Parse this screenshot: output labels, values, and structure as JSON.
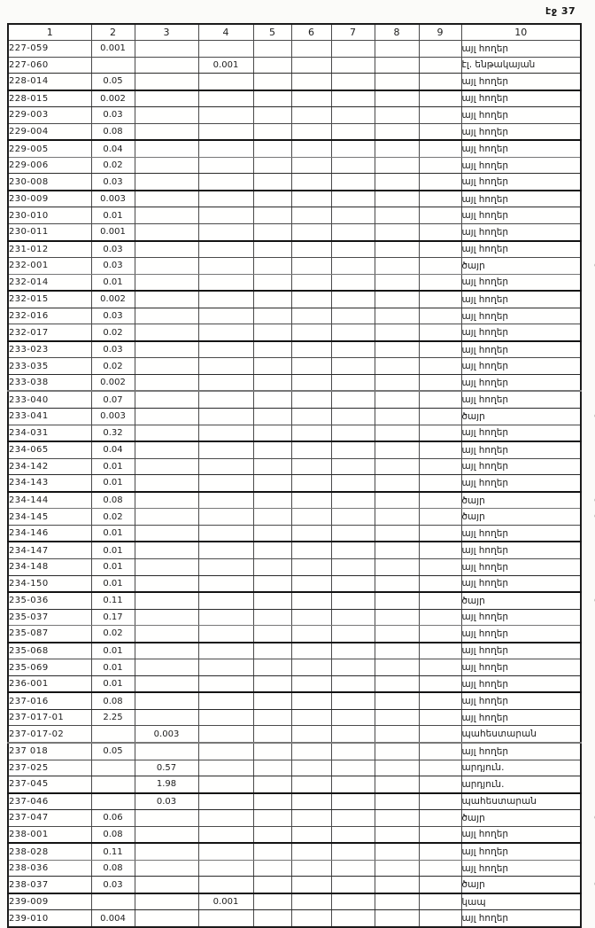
{
  "page": {
    "label": "էջ 37"
  },
  "colors": {
    "ink": "#1c1c1c",
    "paper": "#fbfbf9",
    "border": "#4c4c4c"
  },
  "table": {
    "headers": [
      "1",
      "2",
      "3",
      "4",
      "5",
      "6",
      "7",
      "8",
      "9",
      "10"
    ],
    "rows": [
      {
        "cells": [
          "227-059",
          "0.001",
          "",
          "",
          "",
          "",
          "",
          "",
          "",
          "այլ հողեր"
        ],
        "note": ""
      },
      {
        "cells": [
          "227-060",
          "",
          "",
          "0.001",
          "",
          "",
          "",
          "",
          "",
          "էլ. ենթակայան"
        ],
        "note": ""
      },
      {
        "cells": [
          "228-014",
          "0.05",
          "",
          "",
          "",
          "",
          "",
          "",
          "",
          "այլ հողեր"
        ],
        "note": ""
      },
      {
        "cells": [
          "228-015",
          "0.002",
          "",
          "",
          "",
          "",
          "",
          "",
          "",
          "այլ հողեր"
        ],
        "note": ""
      },
      {
        "cells": [
          "229-003",
          "0.03",
          "",
          "",
          "",
          "",
          "",
          "",
          "",
          "այլ հողեր"
        ],
        "note": ""
      },
      {
        "cells": [
          "229-004",
          "0.08",
          "",
          "",
          "",
          "",
          "",
          "",
          "",
          "այլ հողեր"
        ],
        "note": ""
      },
      {
        "cells": [
          "229-005",
          "0.04",
          "",
          "",
          "",
          "",
          "",
          "",
          "",
          "այլ հողեր"
        ],
        "note": ""
      },
      {
        "cells": [
          "229-006",
          "0.02",
          "",
          "",
          "",
          "",
          "",
          "",
          "",
          "այլ հողեր"
        ],
        "note": ""
      },
      {
        "cells": [
          "230-008",
          "0.03",
          "",
          "",
          "",
          "",
          "",
          "",
          "",
          "այլ հողեր"
        ],
        "note": ""
      },
      {
        "cells": [
          "230-009",
          "0.003",
          "",
          "",
          "",
          "",
          "",
          "",
          "",
          "այլ հողեր"
        ],
        "note": ""
      },
      {
        "cells": [
          "230-010",
          "0.01",
          "",
          "",
          "",
          "",
          "",
          "",
          "",
          "այլ հողեր"
        ],
        "note": ""
      },
      {
        "cells": [
          "230-011",
          "0.001",
          "",
          "",
          "",
          "",
          "",
          "",
          "",
          "այլ հողեր"
        ],
        "note": ""
      },
      {
        "cells": [
          "231-012",
          "0.03",
          "",
          "",
          "",
          "",
          "",
          "",
          "",
          "այլ հողեր"
        ],
        "note": ""
      },
      {
        "cells": [
          "232-001",
          "0.03",
          "",
          "",
          "",
          "",
          "",
          "",
          "",
          "ծայր"
        ],
        "note": "ժ"
      },
      {
        "cells": [
          "232-014",
          "0.01",
          "",
          "",
          "",
          "",
          "",
          "",
          "",
          "այլ հողեր"
        ],
        "note": ""
      },
      {
        "cells": [
          "232-015",
          "0.002",
          "",
          "",
          "",
          "",
          "",
          "",
          "",
          "այլ հողեր"
        ],
        "note": ""
      },
      {
        "cells": [
          "232-016",
          "0.03",
          "",
          "",
          "",
          "",
          "",
          "",
          "",
          "այլ հողեր"
        ],
        "note": ""
      },
      {
        "cells": [
          "232-017",
          "0.02",
          "",
          "",
          "",
          "",
          "",
          "",
          "",
          "այլ հողեր"
        ],
        "note": ""
      },
      {
        "cells": [
          "233-023",
          "0.03",
          "",
          "",
          "",
          "",
          "",
          "",
          "",
          "այլ հողեր"
        ],
        "note": ""
      },
      {
        "cells": [
          "233-035",
          "0.02",
          "",
          "",
          "",
          "",
          "",
          "",
          "",
          "այլ հողեր"
        ],
        "note": ""
      },
      {
        "cells": [
          "233-038",
          "0.002",
          "",
          "",
          "",
          "",
          "",
          "",
          "",
          "այլ հողեր"
        ],
        "note": ""
      },
      {
        "cells": [
          "233-040",
          "0.07",
          "",
          "",
          "",
          "",
          "",
          "",
          "",
          "այլ հողեր"
        ],
        "note": ""
      },
      {
        "cells": [
          "233-041",
          "0.003",
          "",
          "",
          "",
          "",
          "",
          "",
          "",
          "ծայր"
        ],
        "note": "ժ"
      },
      {
        "cells": [
          "234-031",
          "0.32",
          "",
          "",
          "",
          "",
          "",
          "",
          "",
          "այլ հողեր"
        ],
        "note": ""
      },
      {
        "cells": [
          "234-065",
          "0.04",
          "",
          "",
          "",
          "",
          "",
          "",
          "",
          "այլ հողեր"
        ],
        "note": ""
      },
      {
        "cells": [
          "234-142",
          "0.01",
          "",
          "",
          "",
          "",
          "",
          "",
          "",
          "այլ հողեր"
        ],
        "note": ""
      },
      {
        "cells": [
          "234-143",
          "0.01",
          "",
          "",
          "",
          "",
          "",
          "",
          "",
          "այլ հողեր"
        ],
        "note": ""
      },
      {
        "cells": [
          "234-144",
          "0.08",
          "",
          "",
          "",
          "",
          "",
          "",
          "",
          "ծայր"
        ],
        "note": "ժ"
      },
      {
        "cells": [
          "234-145",
          "0.02",
          "",
          "",
          "",
          "",
          "",
          "",
          "",
          "ծայր"
        ],
        "note": "ժ"
      },
      {
        "cells": [
          "234-146",
          "0.01",
          "",
          "",
          "",
          "",
          "",
          "",
          "",
          "այլ հողեր"
        ],
        "note": ""
      },
      {
        "cells": [
          "234-147",
          "0.01",
          "",
          "",
          "",
          "",
          "",
          "",
          "",
          "այլ հողեր"
        ],
        "note": ""
      },
      {
        "cells": [
          "234-148",
          "0.01",
          "",
          "",
          "",
          "",
          "",
          "",
          "",
          "այլ հողեր"
        ],
        "note": ""
      },
      {
        "cells": [
          "234-150",
          "0.01",
          "",
          "",
          "",
          "",
          "",
          "",
          "",
          "այլ հողեր"
        ],
        "note": ""
      },
      {
        "cells": [
          "235-036",
          "0.11",
          "",
          "",
          "",
          "",
          "",
          "",
          "",
          "ծայր"
        ],
        "note": "ժ"
      },
      {
        "cells": [
          "235-037",
          "0.17",
          "",
          "",
          "",
          "",
          "",
          "",
          "",
          "այլ հողեր"
        ],
        "note": ""
      },
      {
        "cells": [
          "235-087",
          "0.02",
          "",
          "",
          "",
          "",
          "",
          "",
          "",
          "այլ հողեր"
        ],
        "note": ""
      },
      {
        "cells": [
          "235-068",
          "0.01",
          "",
          "",
          "",
          "",
          "",
          "",
          "",
          "այլ հողեր"
        ],
        "note": ""
      },
      {
        "cells": [
          "235-069",
          "0.01",
          "",
          "",
          "",
          "",
          "",
          "",
          "",
          "այլ հողեր"
        ],
        "note": ""
      },
      {
        "cells": [
          "236-001",
          "0.01",
          "",
          "",
          "",
          "",
          "",
          "",
          "",
          "այլ հողեր"
        ],
        "note": ""
      },
      {
        "cells": [
          "237-016",
          "0.08",
          "",
          "",
          "",
          "",
          "",
          "",
          "",
          "այլ հողեր"
        ],
        "note": ""
      },
      {
        "cells": [
          "237-017-01",
          "2.25",
          "",
          "",
          "",
          "",
          "",
          "",
          "",
          "այլ հողեր"
        ],
        "note": ""
      },
      {
        "cells": [
          "237-017-02",
          "",
          "0.003",
          "",
          "",
          "",
          "",
          "",
          "",
          "պահեստարան"
        ],
        "note": ""
      },
      {
        "cells": [
          "237 018",
          "0.05",
          "",
          "",
          "",
          "",
          "",
          "",
          "",
          "այլ հողեր"
        ],
        "note": ""
      },
      {
        "cells": [
          "237-025",
          "",
          "0.57",
          "",
          "",
          "",
          "",
          "",
          "",
          "արդյուն."
        ],
        "note": ""
      },
      {
        "cells": [
          "237-045",
          "",
          "1.98",
          "",
          "",
          "",
          "",
          "",
          "",
          "արդյուն."
        ],
        "note": ""
      },
      {
        "cells": [
          "237-046",
          "",
          "0.03",
          "",
          "",
          "",
          "",
          "",
          "",
          "պահեստարան"
        ],
        "note": ""
      },
      {
        "cells": [
          "237-047",
          "0.06",
          "",
          "",
          "",
          "",
          "",
          "",
          "",
          "ծայր"
        ],
        "note": "ժ"
      },
      {
        "cells": [
          "238-001",
          "0.08",
          "",
          "",
          "",
          "",
          "",
          "",
          "",
          "այլ հողեր"
        ],
        "note": ""
      },
      {
        "cells": [
          "238-028",
          "0.11",
          "",
          "",
          "",
          "",
          "",
          "",
          "",
          "այլ հողեր"
        ],
        "note": ""
      },
      {
        "cells": [
          "238-036",
          "0.08",
          "",
          "",
          "",
          "",
          "",
          "",
          "",
          "այլ հողեր"
        ],
        "note": ""
      },
      {
        "cells": [
          "238-037",
          "0.03",
          "",
          "",
          "",
          "",
          "",
          "",
          "",
          "ծայր"
        ],
        "note": "ժ"
      },
      {
        "cells": [
          "239-009",
          "",
          "",
          "0.001",
          "",
          "",
          "",
          "",
          "",
          "կապ"
        ],
        "note": ""
      },
      {
        "cells": [
          "239-010",
          "0.004",
          "",
          "",
          "",
          "",
          "",
          "",
          "",
          "այլ հողեր"
        ],
        "note": ""
      }
    ]
  }
}
